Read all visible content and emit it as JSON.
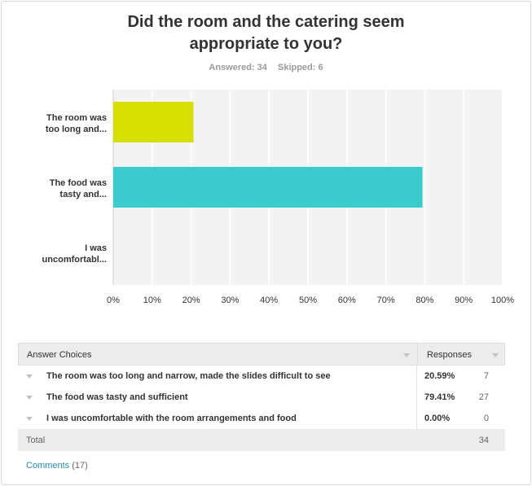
{
  "question": {
    "title_line1": "Did the room and the catering seem",
    "title_line2": "appropriate to you?",
    "answered": "Answered: 34",
    "skipped": "Skipped: 6"
  },
  "chart_data": {
    "type": "bar",
    "orientation": "horizontal",
    "title": "Did the room and the catering seem appropriate to you?",
    "categories": [
      [
        "The room was",
        "too long and..."
      ],
      [
        "The food was",
        "tasty and..."
      ],
      [
        "I was",
        "uncomfortabl..."
      ]
    ],
    "values": [
      20.59,
      79.41,
      0.0
    ],
    "colors": [
      "#d6df00",
      "#3ccbcc",
      "#bbbbbb"
    ],
    "xlim": [
      0,
      100
    ],
    "xticks": [
      "0%",
      "10%",
      "20%",
      "30%",
      "40%",
      "50%",
      "60%",
      "70%",
      "80%",
      "90%",
      "100%"
    ],
    "grid": true
  },
  "table": {
    "header_choices": "Answer Choices",
    "header_responses": "Responses",
    "rows": [
      {
        "label": "The room was too long and narrow, made the slides difficult to see",
        "pct": "20.59%",
        "count": "7"
      },
      {
        "label": "The food was tasty and sufficient",
        "pct": "79.41%",
        "count": "27"
      },
      {
        "label": "I was uncomfortable with the room arrangements and food",
        "pct": "0.00%",
        "count": "0"
      }
    ],
    "total_label": "Total",
    "total_count": "34"
  },
  "comments": {
    "link": "Comments",
    "count": "(17)"
  }
}
